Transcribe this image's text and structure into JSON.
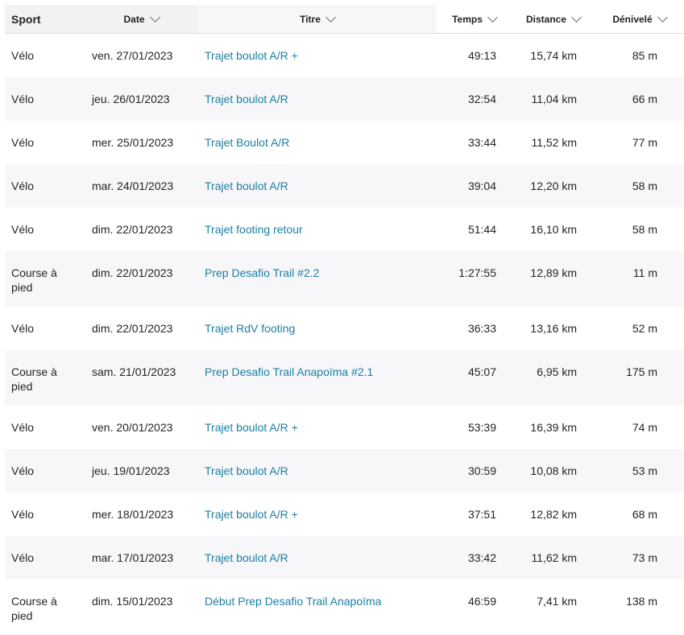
{
  "columns": {
    "sport": "Sport",
    "date": "Date",
    "title": "Titre",
    "time": "Temps",
    "distance": "Distance",
    "elevation": "Dénivelé"
  },
  "rows": [
    {
      "sport": "Vélo",
      "date": "ven. 27/01/2023",
      "title": "Trajet boulot A/R +",
      "time": "49:13",
      "distance": "15,74 km",
      "elevation": "85 m"
    },
    {
      "sport": "Vélo",
      "date": "jeu. 26/01/2023",
      "title": "Trajet boulot A/R",
      "time": "32:54",
      "distance": "11,04 km",
      "elevation": "66 m"
    },
    {
      "sport": "Vélo",
      "date": "mer. 25/01/2023",
      "title": "Trajet Boulot A/R",
      "time": "33:44",
      "distance": "11,52 km",
      "elevation": "77 m"
    },
    {
      "sport": "Vélo",
      "date": "mar. 24/01/2023",
      "title": "Trajet boulot A/R",
      "time": "39:04",
      "distance": "12,20 km",
      "elevation": "58 m"
    },
    {
      "sport": "Vélo",
      "date": "dim. 22/01/2023",
      "title": "Trajet footing retour",
      "time": "51:44",
      "distance": "16,10 km",
      "elevation": "58 m"
    },
    {
      "sport": "Course à pied",
      "date": "dim. 22/01/2023",
      "title": "Prep Desafio Trail #2.2",
      "time": "1:27:55",
      "distance": "12,89 km",
      "elevation": "11 m"
    },
    {
      "sport": "Vélo",
      "date": "dim. 22/01/2023",
      "title": "Trajet RdV footing",
      "time": "36:33",
      "distance": "13,16 km",
      "elevation": "52 m"
    },
    {
      "sport": "Course à pied",
      "date": "sam. 21/01/2023",
      "title": "Prep Desafio Trail Anapoïma #2.1",
      "time": "45:07",
      "distance": "6,95 km",
      "elevation": "175 m"
    },
    {
      "sport": "Vélo",
      "date": "ven. 20/01/2023",
      "title": "Trajet boulot A/R +",
      "time": "53:39",
      "distance": "16,39 km",
      "elevation": "74 m"
    },
    {
      "sport": "Vélo",
      "date": "jeu. 19/01/2023",
      "title": "Trajet boulot A/R",
      "time": "30:59",
      "distance": "10,08 km",
      "elevation": "53 m"
    },
    {
      "sport": "Vélo",
      "date": "mer. 18/01/2023",
      "title": "Trajet boulot A/R +",
      "time": "37:51",
      "distance": "12,82 km",
      "elevation": "68 m"
    },
    {
      "sport": "Vélo",
      "date": "mar. 17/01/2023",
      "title": "Trajet boulot A/R",
      "time": "33:42",
      "distance": "11,62 km",
      "elevation": "73 m"
    },
    {
      "sport": "Course à pied",
      "date": "dim. 15/01/2023",
      "title": "Début Prep Desafio Trail Anapoïma",
      "time": "46:59",
      "distance": "7,41 km",
      "elevation": "138 m"
    }
  ],
  "colors": {
    "link": "#1b7fa3",
    "row_alt": "#f7f7fa",
    "text": "#242428"
  }
}
